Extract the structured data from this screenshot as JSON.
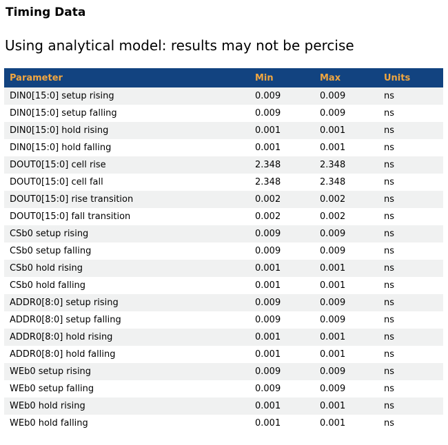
{
  "page": {
    "title": "Timing Data",
    "subtitle": "Using analytical model: results may not be percise"
  },
  "colors": {
    "header_bg": "#124380",
    "header_text": "#f0a640",
    "row_alt_bg": "#f0f1f1",
    "body_text": "#000000",
    "page_bg": "#ffffff"
  },
  "table": {
    "columns": [
      "Parameter",
      "Min",
      "Max",
      "Units"
    ],
    "rows": [
      {
        "param": "DIN0[15:0] setup rising",
        "min": "0.009",
        "max": "0.009",
        "units": "ns"
      },
      {
        "param": "DIN0[15:0] setup falling",
        "min": "0.009",
        "max": "0.009",
        "units": "ns"
      },
      {
        "param": "DIN0[15:0] hold rising",
        "min": "0.001",
        "max": "0.001",
        "units": "ns"
      },
      {
        "param": "DIN0[15:0] hold falling",
        "min": "0.001",
        "max": "0.001",
        "units": "ns"
      },
      {
        "param": "DOUT0[15:0] cell rise",
        "min": "2.348",
        "max": "2.348",
        "units": "ns"
      },
      {
        "param": "DOUT0[15:0] cell fall",
        "min": "2.348",
        "max": "2.348",
        "units": "ns"
      },
      {
        "param": "DOUT0[15:0] rise transition",
        "min": "0.002",
        "max": "0.002",
        "units": "ns"
      },
      {
        "param": "DOUT0[15:0] fall transition",
        "min": "0.002",
        "max": "0.002",
        "units": "ns"
      },
      {
        "param": "CSb0 setup rising",
        "min": "0.009",
        "max": "0.009",
        "units": "ns"
      },
      {
        "param": "CSb0 setup falling",
        "min": "0.009",
        "max": "0.009",
        "units": "ns"
      },
      {
        "param": "CSb0 hold rising",
        "min": "0.001",
        "max": "0.001",
        "units": "ns"
      },
      {
        "param": "CSb0 hold falling",
        "min": "0.001",
        "max": "0.001",
        "units": "ns"
      },
      {
        "param": "ADDR0[8:0] setup rising",
        "min": "0.009",
        "max": "0.009",
        "units": "ns"
      },
      {
        "param": "ADDR0[8:0] setup falling",
        "min": "0.009",
        "max": "0.009",
        "units": "ns"
      },
      {
        "param": "ADDR0[8:0] hold rising",
        "min": "0.001",
        "max": "0.001",
        "units": "ns"
      },
      {
        "param": "ADDR0[8:0] hold falling",
        "min": "0.001",
        "max": "0.001",
        "units": "ns"
      },
      {
        "param": "WEb0 setup rising",
        "min": "0.009",
        "max": "0.009",
        "units": "ns"
      },
      {
        "param": "WEb0 setup falling",
        "min": "0.009",
        "max": "0.009",
        "units": "ns"
      },
      {
        "param": "WEb0 hold rising",
        "min": "0.001",
        "max": "0.001",
        "units": "ns"
      },
      {
        "param": "WEb0 hold falling",
        "min": "0.001",
        "max": "0.001",
        "units": "ns"
      }
    ]
  }
}
